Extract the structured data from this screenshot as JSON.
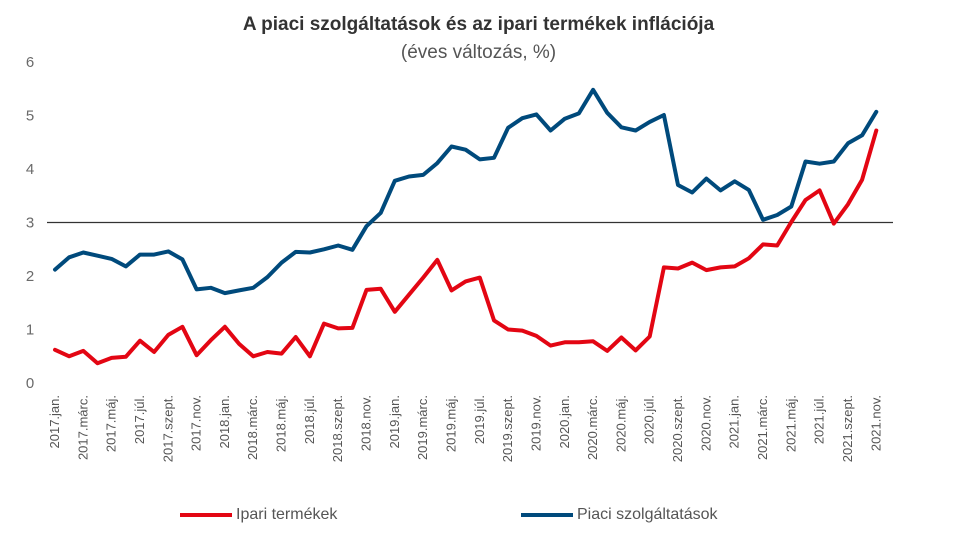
{
  "chart_data": {
    "type": "line",
    "title": "A piaci szolgáltatások és az ipari termékek inflációja",
    "subtitle": "(éves változás, %)",
    "xlabel": "",
    "ylabel": "",
    "ylim": [
      0,
      6
    ],
    "yticks": [
      0,
      1,
      2,
      3,
      4,
      5,
      6
    ],
    "reference_line": 3,
    "grid": false,
    "legend_position": "bottom",
    "x": [
      "2017.jan.",
      "2017.febr.",
      "2017.márc.",
      "2017.ápr.",
      "2017.máj.",
      "2017.jún.",
      "2017.júl.",
      "2017.aug.",
      "2017.szept.",
      "2017.okt.",
      "2017.nov.",
      "2017.dec.",
      "2018.jan.",
      "2018.febr.",
      "2018.márc.",
      "2018.ápr.",
      "2018.máj.",
      "2018.jún.",
      "2018.júl.",
      "2018.aug.",
      "2018.szept.",
      "2018.okt.",
      "2018.nov.",
      "2018.dec.",
      "2019.jan.",
      "2019.febr.",
      "2019.márc.",
      "2019.ápr.",
      "2019.máj.",
      "2019.jún.",
      "2019.júl.",
      "2019.aug.",
      "2019.szept.",
      "2019.okt.",
      "2019.nov.",
      "2019.dec.",
      "2020.jan.",
      "2020.febr.",
      "2020.márc.",
      "2020.ápr.",
      "2020.máj.",
      "2020.jún.",
      "2020.júl.",
      "2020.aug.",
      "2020.szept.",
      "2020.okt.",
      "2020.nov.",
      "2020.dec.",
      "2021.jan.",
      "2021.febr.",
      "2021.márc.",
      "2021.ápr.",
      "2021.máj.",
      "2021.jún.",
      "2021.júl.",
      "2021.aug.",
      "2021.szept.",
      "2021.okt.",
      "2021.nov."
    ],
    "x_tick_labels": [
      "2017.jan.",
      "2017.márc.",
      "2017.máj.",
      "2017.júl.",
      "2017.szept.",
      "2017.nov.",
      "2018.jan.",
      "2018.márc.",
      "2018.máj.",
      "2018.júl.",
      "2018.szept.",
      "2018.nov.",
      "2019.jan.",
      "2019.márc.",
      "2019.máj.",
      "2019.júl.",
      "2019.szept.",
      "2019.nov.",
      "2020.jan.",
      "2020.márc.",
      "2020.máj.",
      "2020.júl.",
      "2020.szept.",
      "2020.nov.",
      "2021.jan.",
      "2021.márc.",
      "2021.máj.",
      "2021.júl.",
      "2021.szept.",
      "2021.nov."
    ],
    "series": [
      {
        "name": "Ipari termékek",
        "color": "#e30613",
        "values": [
          0.62,
          0.5,
          0.6,
          0.37,
          0.47,
          0.49,
          0.79,
          0.58,
          0.9,
          1.05,
          0.52,
          0.8,
          1.05,
          0.73,
          0.5,
          0.58,
          0.55,
          0.86,
          0.5,
          1.11,
          1.02,
          1.03,
          1.74,
          1.76,
          1.33,
          1.65,
          1.97,
          2.3,
          1.73,
          1.9,
          1.97,
          1.17,
          1.0,
          0.98,
          0.88,
          0.7,
          0.76,
          0.76,
          0.78,
          0.6,
          0.85,
          0.61,
          0.87,
          2.16,
          2.14,
          2.25,
          2.11,
          2.16,
          2.18,
          2.33,
          2.59,
          2.57,
          3.01,
          3.42,
          3.6,
          2.98,
          3.34,
          3.8,
          4.72
        ]
      },
      {
        "name": "Piaci szolgáltatások",
        "color": "#004a7c",
        "values": [
          2.12,
          2.35,
          2.44,
          2.38,
          2.32,
          2.18,
          2.4,
          2.4,
          2.46,
          2.31,
          1.75,
          1.78,
          1.68,
          1.73,
          1.78,
          1.98,
          2.25,
          2.45,
          2.44,
          2.5,
          2.57,
          2.49,
          2.93,
          3.18,
          3.78,
          3.86,
          3.89,
          4.11,
          4.42,
          4.36,
          4.18,
          4.21,
          4.77,
          4.95,
          5.02,
          4.72,
          4.94,
          5.04,
          5.48,
          5.05,
          4.78,
          4.72,
          4.88,
          5.01,
          3.7,
          3.56,
          3.82,
          3.6,
          3.77,
          3.61,
          3.05,
          3.14,
          3.3,
          4.14,
          4.1,
          4.14,
          4.48,
          4.63,
          5.07
        ]
      }
    ]
  }
}
